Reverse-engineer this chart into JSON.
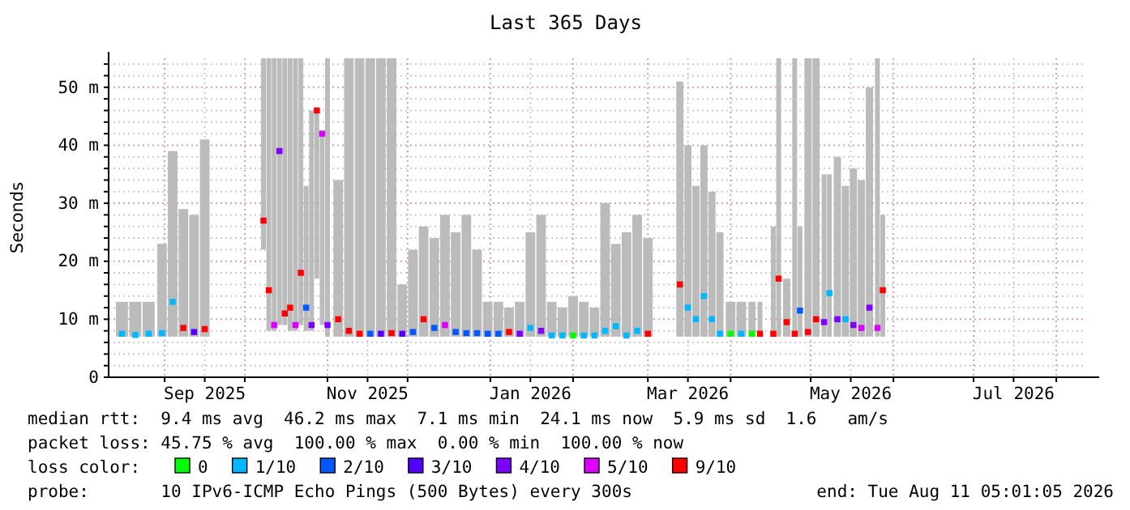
{
  "chart_data": {
    "type": "scatter",
    "title": "Last 365 Days",
    "ylabel": "Seconds",
    "xlim": [
      "2025-08-11",
      "2026-08-11"
    ],
    "xticks": [
      {
        "value": "2025-09-01",
        "label": null
      },
      {
        "value": "2025-09-16",
        "label": "Sep 2025"
      },
      {
        "value": "2025-10-01",
        "label": null
      },
      {
        "value": "2025-11-01",
        "label": null
      },
      {
        "value": "2025-11-16",
        "label": "Nov 2025"
      },
      {
        "value": "2025-12-01",
        "label": null
      },
      {
        "value": "2026-01-01",
        "label": null
      },
      {
        "value": "2026-01-16",
        "label": "Jan 2026"
      },
      {
        "value": "2026-02-01",
        "label": null
      },
      {
        "value": "2026-03-01",
        "label": null
      },
      {
        "value": "2026-03-16",
        "label": "Mar 2026"
      },
      {
        "value": "2026-04-01",
        "label": null
      },
      {
        "value": "2026-05-01",
        "label": null
      },
      {
        "value": "2026-05-16",
        "label": "May 2026"
      },
      {
        "value": "2026-06-01",
        "label": null
      },
      {
        "value": "2026-07-01",
        "label": null
      },
      {
        "value": "2026-07-16",
        "label": "Jul 2026"
      },
      {
        "value": "2026-08-01",
        "label": null
      }
    ],
    "ylim": [
      0,
      55
    ],
    "yticks": [
      0,
      {
        "value": 2,
        "label": null
      },
      {
        "value": 4,
        "label": null
      },
      {
        "value": 6,
        "label": null
      },
      {
        "value": 8,
        "label": null
      },
      {
        "value": 10,
        "label": "10 m"
      },
      {
        "value": 12,
        "label": null
      },
      {
        "value": 14,
        "label": null
      },
      {
        "value": 16,
        "label": null
      },
      {
        "value": 18,
        "label": null
      },
      {
        "value": 20,
        "label": "20 m"
      },
      {
        "value": 22,
        "label": null
      },
      {
        "value": 24,
        "label": null
      },
      {
        "value": 26,
        "label": null
      },
      {
        "value": 28,
        "label": null
      },
      {
        "value": 30,
        "label": "30 m"
      },
      {
        "value": 32,
        "label": null
      },
      {
        "value": 34,
        "label": null
      },
      {
        "value": 36,
        "label": null
      },
      {
        "value": 38,
        "label": null
      },
      {
        "value": 40,
        "label": "40 m"
      },
      {
        "value": 42,
        "label": null
      },
      {
        "value": 44,
        "label": null
      },
      {
        "value": 46,
        "label": null
      },
      {
        "value": 48,
        "label": null
      },
      {
        "value": 50,
        "label": "50 m"
      },
      {
        "value": 52,
        "label": null
      },
      {
        "value": 54,
        "label": null
      }
    ],
    "grid": true,
    "marker": "square",
    "legend": "bottom",
    "legend_title": "loss color:",
    "annotations": [
      "median rtt:  9.4 ms avg  46.2 ms max  7.1 ms min  24.1 ms now  5.9 ms sd  1.6   am/s",
      "packet loss: 45.75 % avg  100.00 % max  0.00 % min  100.00 % now",
      "probe:       10 IPv6-ICMP Echo Pings (500 Bytes) every 300s",
      "end: Tue Aug 11 05:01:05 2026"
    ],
    "series": [
      {
        "type": "bar",
        "color": "#bbbbbb",
        "x": [
          "2025-08-16",
          "2025-08-21",
          "2025-08-26",
          "2025-08-31",
          "2025-09-04",
          "2025-09-08",
          "2025-09-12",
          "2025-09-16",
          "2025-09-25",
          "2025-10-08",
          "2025-10-10",
          "2025-10-12",
          "2025-10-14",
          "2025-10-16",
          "2025-10-18",
          "2025-10-20",
          "2025-10-22",
          "2025-10-24",
          "2025-10-26",
          "2025-10-28",
          "2025-10-30",
          "2025-11-01",
          "2025-11-05",
          "2025-11-09",
          "2025-11-13",
          "2025-11-17",
          "2025-11-21",
          "2025-11-25",
          "2025-11-29",
          "2025-12-03",
          "2025-12-07",
          "2025-12-11",
          "2025-12-15",
          "2025-12-19",
          "2025-12-23",
          "2025-12-27",
          "2025-12-31",
          "2026-01-04",
          "2026-01-08",
          "2026-01-12",
          "2026-01-16",
          "2026-01-20",
          "2026-01-24",
          "2026-01-28",
          "2026-02-01",
          "2026-02-05",
          "2026-02-09",
          "2026-02-13",
          "2026-02-17",
          "2026-02-21",
          "2026-02-25",
          "2026-03-01",
          "2026-03-08",
          "2026-03-13",
          "2026-03-16",
          "2026-03-19",
          "2026-03-22",
          "2026-03-25",
          "2026-03-28",
          "2026-04-01",
          "2026-04-05",
          "2026-04-09",
          "2026-04-12",
          "2026-04-14",
          "2026-04-17",
          "2026-04-19",
          "2026-04-22",
          "2026-04-25",
          "2026-04-27",
          "2026-04-30",
          "2026-05-03",
          "2026-05-06",
          "2026-05-08",
          "2026-05-11",
          "2026-05-14",
          "2026-05-17",
          "2026-05-20",
          "2026-05-23",
          "2026-05-26",
          "2026-05-28"
        ],
        "values": [
          6,
          6,
          6,
          16,
          32,
          22,
          21,
          34,
          null,
          33,
          47,
          47,
          46,
          46,
          47,
          47,
          46,
          25,
          38,
          29,
          33,
          48,
          27,
          48,
          48,
          48,
          48,
          48,
          9,
          15,
          19,
          17,
          21,
          18,
          21,
          15,
          6,
          6,
          5,
          6,
          18,
          21,
          6,
          5,
          7,
          6,
          5,
          23,
          16,
          18,
          21,
          17,
          null,
          44,
          33,
          26,
          33,
          25,
          18,
          6,
          6,
          6,
          6,
          null,
          19,
          48,
          10,
          48,
          19,
          48,
          48,
          28,
          28,
          31,
          26,
          29,
          27,
          43,
          48,
          21
        ],
        "base": [
          7,
          7,
          7,
          7,
          7,
          7,
          7,
          7,
          null,
          22,
          8,
          8,
          9,
          9,
          8,
          8,
          9,
          8,
          8,
          17,
          9,
          7,
          7,
          7,
          7,
          7,
          7,
          7,
          7,
          7,
          7,
          7,
          7,
          7,
          7,
          7,
          7,
          7,
          7,
          7,
          7,
          7,
          7,
          7,
          7,
          7,
          7,
          7,
          7,
          7,
          7,
          7,
          null,
          7,
          7,
          7,
          7,
          7,
          7,
          7,
          7,
          7,
          7,
          null,
          7,
          7,
          7,
          7,
          7,
          7,
          7,
          7,
          7,
          7,
          7,
          7,
          7,
          7,
          7,
          7
        ]
      },
      {
        "name": "0",
        "color": "#00ff00",
        "x": [
          "2026-02-01",
          "2026-04-01",
          "2026-04-09"
        ],
        "values": [
          7.2,
          7.5,
          7.5
        ]
      },
      {
        "name": "1/10",
        "color": "#00b8ff",
        "x": [
          "2025-08-16",
          "2025-08-21",
          "2025-08-26",
          "2025-08-31",
          "2025-09-04",
          "2026-01-16",
          "2026-01-24",
          "2026-01-28",
          "2026-02-05",
          "2026-02-09",
          "2026-02-13",
          "2026-02-17",
          "2026-02-21",
          "2026-02-25",
          "2026-03-16",
          "2026-03-19",
          "2026-03-22",
          "2026-03-25",
          "2026-03-28",
          "2026-04-05",
          "2026-05-08",
          "2026-05-14"
        ],
        "values": [
          7.5,
          7.3,
          7.5,
          7.6,
          13,
          8.5,
          7.2,
          7.2,
          7.2,
          7.2,
          8,
          8.8,
          7.2,
          8,
          12,
          10,
          14,
          10,
          7.5,
          7.5,
          14.5,
          10
        ]
      },
      {
        "name": "2/10",
        "color": "#0059ff",
        "x": [
          "2025-10-24",
          "2025-11-17",
          "2025-12-03",
          "2025-12-11",
          "2025-12-19",
          "2025-12-23",
          "2025-12-27",
          "2025-12-31",
          "2026-01-04",
          "2026-04-27"
        ],
        "values": [
          12,
          7.5,
          7.8,
          8.5,
          7.8,
          7.6,
          7.6,
          7.5,
          7.5,
          11.5
        ]
      },
      {
        "name": "3/10",
        "color": "#5500ff",
        "x": [
          "2025-09-12",
          "2025-11-21",
          "2025-11-29"
        ],
        "values": [
          7.8,
          7.5,
          7.5
        ]
      },
      {
        "name": "4/10",
        "color": "#7e00ff",
        "x": [
          "2025-10-14",
          "2025-10-26",
          "2025-11-01",
          "2026-01-12",
          "2026-01-20",
          "2026-05-06",
          "2026-05-11",
          "2026-05-17",
          "2026-05-23"
        ],
        "values": [
          39,
          9,
          9,
          7.5,
          8,
          9.5,
          10,
          9,
          12
        ]
      },
      {
        "name": "5/10",
        "color": "#dd00ff",
        "x": [
          "2025-10-12",
          "2025-10-20",
          "2025-10-30",
          "2025-12-15",
          "2026-05-20",
          "2026-05-26"
        ],
        "values": [
          9,
          9,
          42,
          9,
          8.5,
          8.5
        ]
      },
      {
        "name": "9/10",
        "color": "#ff0000",
        "x": [
          "2025-09-08",
          "2025-09-16",
          "2025-10-08",
          "2025-10-10",
          "2025-10-16",
          "2025-10-18",
          "2025-10-22",
          "2025-10-28",
          "2025-11-05",
          "2025-11-09",
          "2025-11-13",
          "2025-11-25",
          "2025-12-07",
          "2026-01-08",
          "2026-03-01",
          "2026-03-13",
          "2026-04-12",
          "2026-04-17",
          "2026-04-19",
          "2026-04-22",
          "2026-04-25",
          "2026-04-30",
          "2026-05-03",
          "2026-05-28"
        ],
        "values": [
          8.5,
          8.3,
          27,
          15,
          11,
          12,
          18,
          46,
          10,
          8,
          7.5,
          7.6,
          10,
          7.8,
          7.5,
          16,
          7.5,
          7.5,
          17,
          9.5,
          7.5,
          7.8,
          10,
          15
        ]
      }
    ]
  }
}
